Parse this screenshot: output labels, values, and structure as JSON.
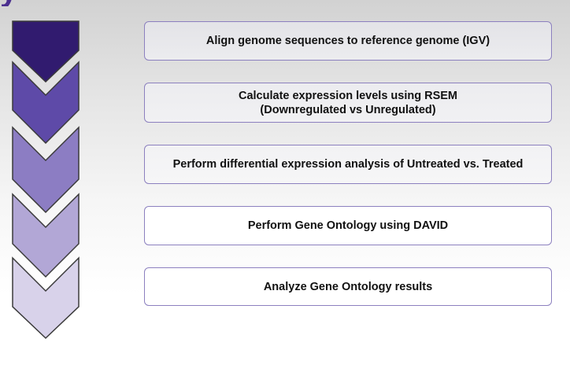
{
  "title_fragment": "y",
  "steps": [
    {
      "label": "Align genome sequences to reference genome (IGV)",
      "color": "#311b6f"
    },
    {
      "label": "Calculate expression levels using RSEM\n(Downregulated vs Unregulated)",
      "color": "#5e4aa8"
    },
    {
      "label": "Perform differential expression analysis of Untreated vs. Treated",
      "color": "#8c7dc3"
    },
    {
      "label": "Perform Gene Ontology using DAVID",
      "color": "#b2a7d6"
    },
    {
      "label": "Analyze Gene Ontology results",
      "color": "#d8d2ea"
    }
  ]
}
